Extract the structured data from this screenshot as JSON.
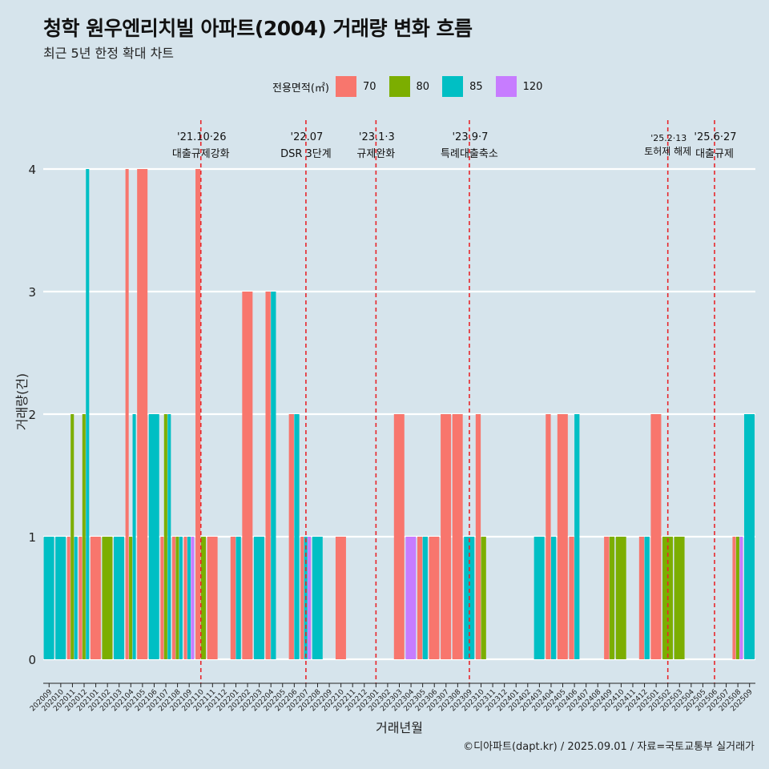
{
  "title": "청학 원우엔리치빌 아파트(2004) 거래량 변화 흐름",
  "subtitle": "최근 5년 한정 확대 차트",
  "caption": "©디아파트(dapt.kr) / 2025.09.01 / 자료=국토교통부 실거래가",
  "legend": {
    "title": "전용면적(㎡)",
    "items": [
      {
        "label": "70",
        "color": "#f8766d"
      },
      {
        "label": "80",
        "color": "#7cae00"
      },
      {
        "label": "85",
        "color": "#00bfc4"
      },
      {
        "label": "120",
        "color": "#c77cff"
      }
    ]
  },
  "chart_data": {
    "type": "bar",
    "xlabel": "거래년월",
    "ylabel": "거래량(건)",
    "ylim": [
      0,
      4
    ],
    "yticks": [
      0,
      1,
      2,
      3,
      4
    ],
    "categories": [
      "202009",
      "202010",
      "202011",
      "202012",
      "202101",
      "202102",
      "202103",
      "202104",
      "202105",
      "202106",
      "202107",
      "202108",
      "202109",
      "202110",
      "202111",
      "202112",
      "202201",
      "202202",
      "202203",
      "202204",
      "202205",
      "202206",
      "202207",
      "202208",
      "202209",
      "202210",
      "202211",
      "202212",
      "202301",
      "202302",
      "202303",
      "202304",
      "202305",
      "202306",
      "202307",
      "202308",
      "202309",
      "202310",
      "202311",
      "202312",
      "202401",
      "202402",
      "202403",
      "202404",
      "202405",
      "202406",
      "202407",
      "202408",
      "202409",
      "202410",
      "202411",
      "202412",
      "202501",
      "202502",
      "202503",
      "202504",
      "202505",
      "202506",
      "202507",
      "202508",
      "202509"
    ],
    "bars": [
      {
        "month": "202009",
        "series": "85",
        "value": 1
      },
      {
        "month": "202010",
        "series": "85",
        "value": 1
      },
      {
        "month": "202011",
        "series": "70",
        "value": 1
      },
      {
        "month": "202011",
        "series": "80",
        "value": 2
      },
      {
        "month": "202011",
        "series": "85",
        "value": 1
      },
      {
        "month": "202012",
        "series": "70",
        "value": 1
      },
      {
        "month": "202012",
        "series": "80",
        "value": 2
      },
      {
        "month": "202012",
        "series": "85",
        "value": 4
      },
      {
        "month": "202101",
        "series": "70",
        "value": 1
      },
      {
        "month": "202102",
        "series": "80",
        "value": 1
      },
      {
        "month": "202103",
        "series": "85",
        "value": 1
      },
      {
        "month": "202104",
        "series": "70",
        "value": 4
      },
      {
        "month": "202104",
        "series": "80",
        "value": 1
      },
      {
        "month": "202104",
        "series": "85",
        "value": 2
      },
      {
        "month": "202105",
        "series": "70",
        "value": 4
      },
      {
        "month": "202106",
        "series": "85",
        "value": 2
      },
      {
        "month": "202107",
        "series": "70",
        "value": 1
      },
      {
        "month": "202107",
        "series": "80",
        "value": 2
      },
      {
        "month": "202107",
        "series": "85",
        "value": 2
      },
      {
        "month": "202108",
        "series": "70",
        "value": 1
      },
      {
        "month": "202108",
        "series": "80",
        "value": 1
      },
      {
        "month": "202108",
        "series": "85",
        "value": 1
      },
      {
        "month": "202109",
        "series": "70",
        "value": 1
      },
      {
        "month": "202109",
        "series": "85",
        "value": 1
      },
      {
        "month": "202109",
        "series": "120",
        "value": 1
      },
      {
        "month": "202110",
        "series": "70",
        "value": 4
      },
      {
        "month": "202110",
        "series": "80",
        "value": 1
      },
      {
        "month": "202111",
        "series": "70",
        "value": 1
      },
      {
        "month": "202201",
        "series": "70",
        "value": 1
      },
      {
        "month": "202201",
        "series": "85",
        "value": 1
      },
      {
        "month": "202202",
        "series": "70",
        "value": 3
      },
      {
        "month": "202203",
        "series": "85",
        "value": 1
      },
      {
        "month": "202204",
        "series": "70",
        "value": 3
      },
      {
        "month": "202204",
        "series": "85",
        "value": 3
      },
      {
        "month": "202206",
        "series": "70",
        "value": 2
      },
      {
        "month": "202206",
        "series": "85",
        "value": 2
      },
      {
        "month": "202207",
        "series": "70",
        "value": 1
      },
      {
        "month": "202207",
        "series": "85",
        "value": 1
      },
      {
        "month": "202207",
        "series": "120",
        "value": 1
      },
      {
        "month": "202208",
        "series": "85",
        "value": 1
      },
      {
        "month": "202210",
        "series": "70",
        "value": 1
      },
      {
        "month": "202303",
        "series": "70",
        "value": 2
      },
      {
        "month": "202304",
        "series": "120",
        "value": 1
      },
      {
        "month": "202305",
        "series": "70",
        "value": 1
      },
      {
        "month": "202305",
        "series": "85",
        "value": 1
      },
      {
        "month": "202306",
        "series": "70",
        "value": 1
      },
      {
        "month": "202307",
        "series": "70",
        "value": 2
      },
      {
        "month": "202308",
        "series": "70",
        "value": 2
      },
      {
        "month": "202309",
        "series": "85",
        "value": 1
      },
      {
        "month": "202310",
        "series": "70",
        "value": 2
      },
      {
        "month": "202310",
        "series": "80",
        "value": 1
      },
      {
        "month": "202403",
        "series": "85",
        "value": 1
      },
      {
        "month": "202404",
        "series": "70",
        "value": 2
      },
      {
        "month": "202404",
        "series": "85",
        "value": 1
      },
      {
        "month": "202405",
        "series": "70",
        "value": 2
      },
      {
        "month": "202406",
        "series": "70",
        "value": 1
      },
      {
        "month": "202406",
        "series": "85",
        "value": 2
      },
      {
        "month": "202409",
        "series": "70",
        "value": 1
      },
      {
        "month": "202409",
        "series": "80",
        "value": 1
      },
      {
        "month": "202410",
        "series": "80",
        "value": 1
      },
      {
        "month": "202412",
        "series": "70",
        "value": 1
      },
      {
        "month": "202412",
        "series": "85",
        "value": 1
      },
      {
        "month": "202501",
        "series": "70",
        "value": 2
      },
      {
        "month": "202502",
        "series": "80",
        "value": 1
      },
      {
        "month": "202503",
        "series": "80",
        "value": 1
      },
      {
        "month": "202508",
        "series": "70",
        "value": 1
      },
      {
        "month": "202508",
        "series": "80",
        "value": 1
      },
      {
        "month": "202508",
        "series": "120",
        "value": 1
      },
      {
        "month": "202509",
        "series": "85",
        "value": 2
      }
    ],
    "events": [
      {
        "month": "202110",
        "date_label": "'21.10·26",
        "text": "대출규제강화"
      },
      {
        "month": "202207",
        "date_label": "'22.07",
        "text": "DSR 3단계"
      },
      {
        "month": "202301",
        "date_label": "'23.1·3",
        "text": "규제완화"
      },
      {
        "month": "202309",
        "date_label": "'23.9·7",
        "text": "특례대출축소"
      },
      {
        "month": "202502",
        "date_label": "'25.2·13",
        "text": "토허제 해제"
      },
      {
        "month": "202506",
        "date_label": "'25.6·27",
        "text": "대출규제"
      }
    ],
    "grid": true,
    "legend_position": "top"
  }
}
